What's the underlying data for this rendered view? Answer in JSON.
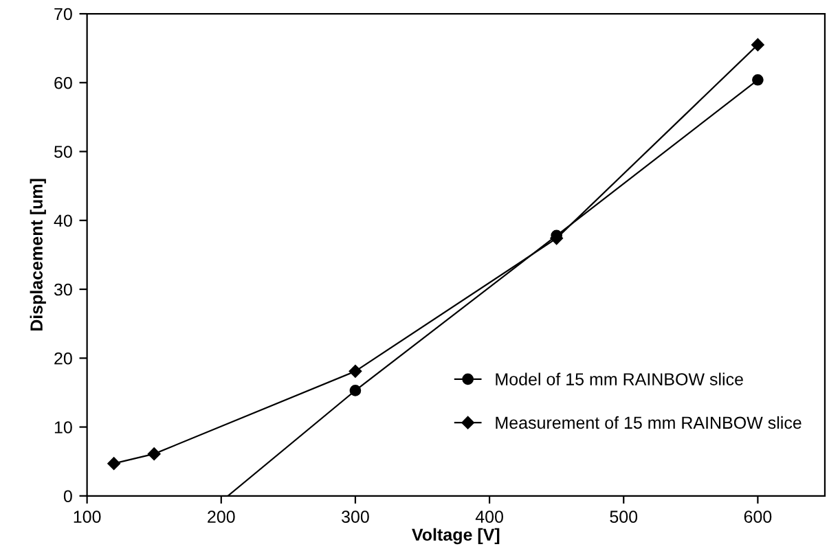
{
  "chart_data": {
    "type": "line",
    "xlabel": "Voltage [V]",
    "ylabel": "Displacement [um]",
    "xlim": [
      100,
      650
    ],
    "xticks": [
      100,
      200,
      300,
      400,
      500,
      600
    ],
    "ylim": [
      0,
      70
    ],
    "yticks": [
      0,
      10,
      20,
      30,
      40,
      50,
      60,
      70
    ],
    "grid": false,
    "legend": "bottom right",
    "line_style": "solid",
    "series": [
      {
        "name": "Model of 15 mm RAINBOW slice",
        "color": "#000000",
        "marker": "circle",
        "x": [
          300,
          450,
          600
        ],
        "values": [
          15.3,
          37.8,
          60.4
        ]
      },
      {
        "color": "#000000",
        "marker": "none",
        "x": [
          205,
          300
        ],
        "values": [
          0,
          15.3
        ]
      },
      {
        "name": "Measurement of 15 mm RAINBOW slice",
        "color": "#000000",
        "marker": "diamond",
        "x": [
          120,
          150,
          300,
          450,
          600
        ],
        "values": [
          4.7,
          6.1,
          18.1,
          37.4,
          65.5
        ]
      }
    ]
  }
}
